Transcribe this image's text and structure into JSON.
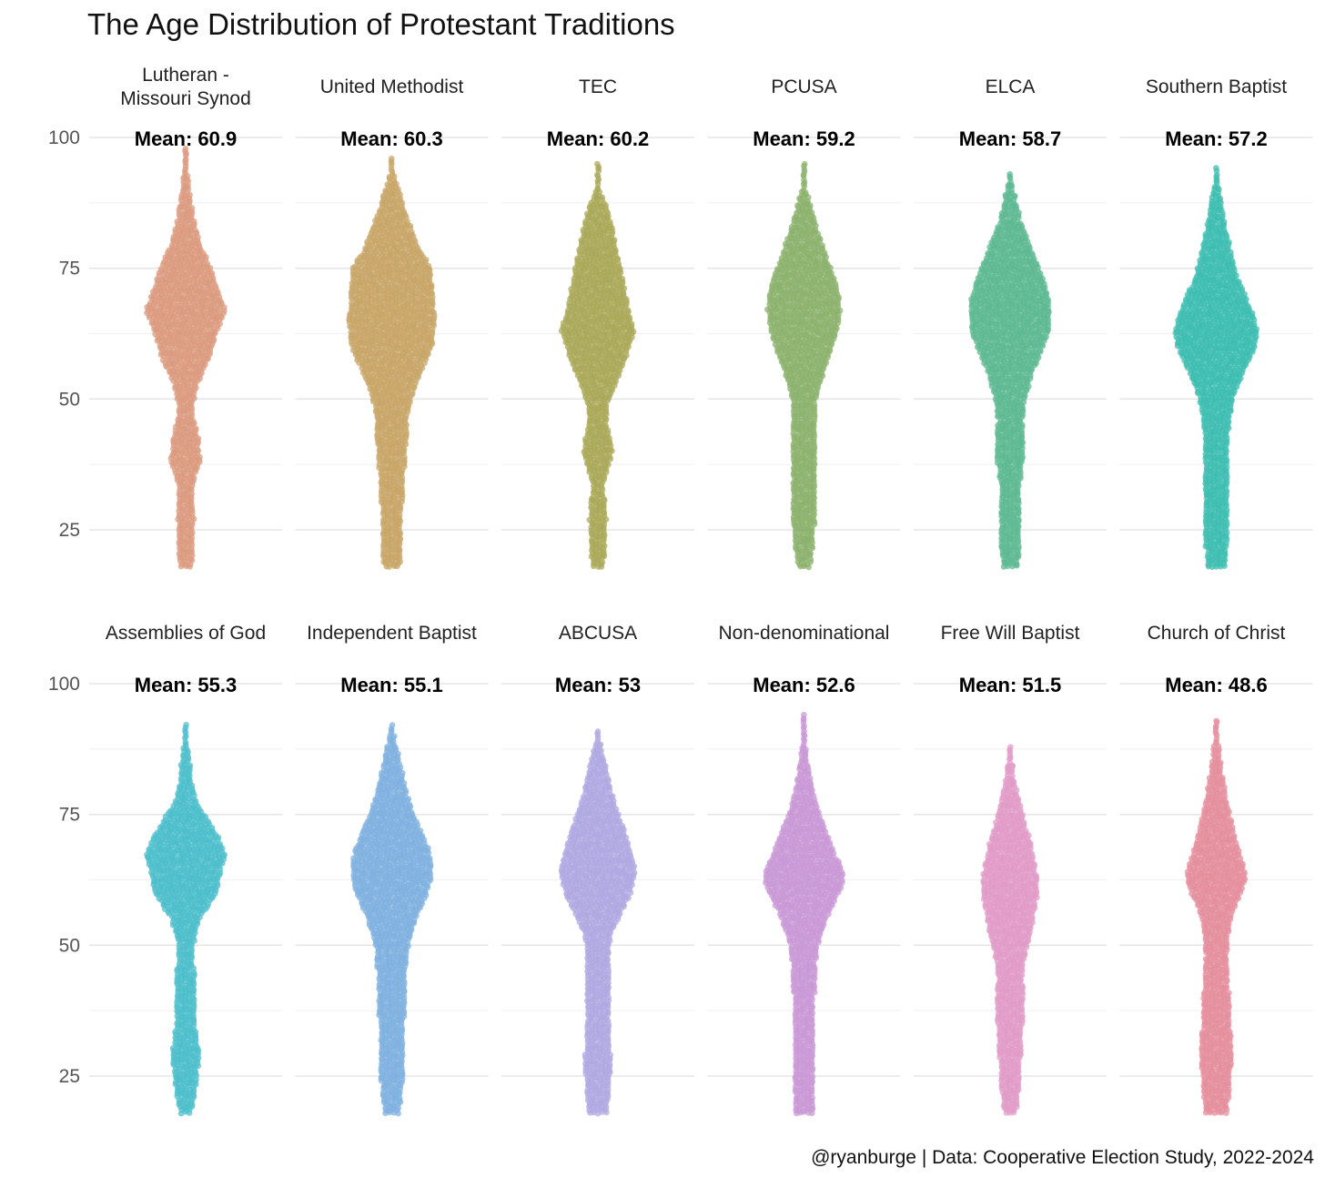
{
  "chart_data": {
    "type": "beeswarm",
    "title": "The Age Distribution of Protestant Traditions",
    "caption": "@ryanburge | Data: Cooperative Election Study, 2022-2024",
    "xlabel": "",
    "ylabel": "",
    "ylim": [
      18,
      100
    ],
    "yticks": [
      25,
      50,
      75,
      100
    ],
    "grid": true,
    "legend": "none",
    "panels": [
      {
        "name": "Lutheran -\nMissouri Synod",
        "mean_label": "Mean: 60.9",
        "mean": 60.9,
        "color": "#DB9A7E",
        "min": 18,
        "max": 98,
        "profile": [
          [
            18,
            7
          ],
          [
            20,
            9
          ],
          [
            25,
            9
          ],
          [
            27,
            10
          ],
          [
            30,
            9
          ],
          [
            33,
            8
          ],
          [
            35,
            11
          ],
          [
            38,
            17
          ],
          [
            41,
            16
          ],
          [
            45,
            12
          ],
          [
            47,
            8
          ],
          [
            50,
            10
          ],
          [
            53,
            14
          ],
          [
            57,
            25
          ],
          [
            62,
            34
          ],
          [
            67,
            44
          ],
          [
            72,
            34
          ],
          [
            76,
            26
          ],
          [
            80,
            16
          ],
          [
            85,
            9
          ],
          [
            90,
            5
          ],
          [
            93,
            3
          ],
          [
            98,
            1
          ]
        ]
      },
      {
        "name": "United Methodist",
        "mean_label": "Mean: 60.3",
        "mean": 60.3,
        "color": "#C7A566",
        "min": 18,
        "max": 96,
        "profile": [
          [
            18,
            9
          ],
          [
            20,
            11
          ],
          [
            25,
            12
          ],
          [
            30,
            12
          ],
          [
            34,
            13
          ],
          [
            38,
            15
          ],
          [
            42,
            17
          ],
          [
            46,
            17
          ],
          [
            50,
            22
          ],
          [
            55,
            32
          ],
          [
            60,
            45
          ],
          [
            65,
            48
          ],
          [
            70,
            46
          ],
          [
            75,
            44
          ],
          [
            78,
            33
          ],
          [
            82,
            24
          ],
          [
            86,
            15
          ],
          [
            89,
            10
          ],
          [
            92,
            4
          ],
          [
            96,
            1
          ]
        ]
      },
      {
        "name": "TEC",
        "mean_label": "Mean: 60.2",
        "mean": 60.2,
        "color": "#A9A757",
        "min": 18,
        "max": 95,
        "profile": [
          [
            18,
            6
          ],
          [
            20,
            8
          ],
          [
            24,
            9
          ],
          [
            27,
            10
          ],
          [
            30,
            9
          ],
          [
            33,
            6
          ],
          [
            36,
            10
          ],
          [
            40,
            17
          ],
          [
            43,
            14
          ],
          [
            46,
            10
          ],
          [
            49,
            12
          ],
          [
            53,
            20
          ],
          [
            58,
            31
          ],
          [
            63,
            41
          ],
          [
            68,
            33
          ],
          [
            73,
            28
          ],
          [
            78,
            22
          ],
          [
            83,
            16
          ],
          [
            87,
            10
          ],
          [
            90,
            3
          ],
          [
            95,
            1
          ]
        ]
      },
      {
        "name": "PCUSA",
        "mean_label": "Mean: 59.2",
        "mean": 59.2,
        "color": "#8AB26C",
        "min": 18,
        "max": 95,
        "profile": [
          [
            18,
            7
          ],
          [
            20,
            9
          ],
          [
            25,
            12
          ],
          [
            30,
            13
          ],
          [
            35,
            13
          ],
          [
            40,
            13
          ],
          [
            45,
            13
          ],
          [
            50,
            14
          ],
          [
            54,
            20
          ],
          [
            58,
            28
          ],
          [
            63,
            37
          ],
          [
            67,
            41
          ],
          [
            72,
            37
          ],
          [
            76,
            28
          ],
          [
            80,
            20
          ],
          [
            84,
            13
          ],
          [
            87,
            8
          ],
          [
            90,
            3
          ],
          [
            95,
            1
          ]
        ]
      },
      {
        "name": "ELCA",
        "mean_label": "Mean: 58.7",
        "mean": 58.7,
        "color": "#5BB890",
        "min": 18,
        "max": 93,
        "profile": [
          [
            18,
            8
          ],
          [
            20,
            10
          ],
          [
            25,
            11
          ],
          [
            29,
            11
          ],
          [
            33,
            11
          ],
          [
            36,
            13
          ],
          [
            40,
            16
          ],
          [
            43,
            15
          ],
          [
            46,
            14
          ],
          [
            50,
            17
          ],
          [
            55,
            25
          ],
          [
            60,
            37
          ],
          [
            64,
            45
          ],
          [
            68,
            45
          ],
          [
            72,
            39
          ],
          [
            76,
            30
          ],
          [
            80,
            22
          ],
          [
            84,
            12
          ],
          [
            88,
            7
          ],
          [
            93,
            1
          ]
        ]
      },
      {
        "name": "Southern Baptist",
        "mean_label": "Mean: 57.2",
        "mean": 57.2,
        "color": "#3BBDB0",
        "min": 18,
        "max": 94,
        "profile": [
          [
            18,
            11
          ],
          [
            21,
            12
          ],
          [
            26,
            13
          ],
          [
            30,
            13
          ],
          [
            35,
            13
          ],
          [
            40,
            13
          ],
          [
            44,
            14
          ],
          [
            48,
            17
          ],
          [
            52,
            23
          ],
          [
            56,
            33
          ],
          [
            60,
            44
          ],
          [
            63,
            46
          ],
          [
            66,
            42
          ],
          [
            70,
            32
          ],
          [
            74,
            23
          ],
          [
            78,
            17
          ],
          [
            82,
            12
          ],
          [
            86,
            8
          ],
          [
            90,
            4
          ],
          [
            94,
            1
          ]
        ]
      },
      {
        "name": "Assemblies of God",
        "mean_label": "Mean: 55.3",
        "mean": 55.3,
        "color": "#4BBECB",
        "min": 18,
        "max": 92,
        "profile": [
          [
            18,
            7
          ],
          [
            20,
            9
          ],
          [
            24,
            13
          ],
          [
            28,
            15
          ],
          [
            32,
            14
          ],
          [
            36,
            10
          ],
          [
            40,
            11
          ],
          [
            45,
            10
          ],
          [
            50,
            9
          ],
          [
            55,
            16
          ],
          [
            60,
            35
          ],
          [
            64,
            39
          ],
          [
            67,
            44
          ],
          [
            70,
            38
          ],
          [
            74,
            25
          ],
          [
            77,
            14
          ],
          [
            80,
            8
          ],
          [
            84,
            6
          ],
          [
            88,
            3
          ],
          [
            92,
            1
          ]
        ]
      },
      {
        "name": "Independent Baptist",
        "mean_label": "Mean: 55.1",
        "mean": 55.1,
        "color": "#7EB0DF",
        "min": 18,
        "max": 92,
        "profile": [
          [
            18,
            8
          ],
          [
            20,
            10
          ],
          [
            25,
            13
          ],
          [
            30,
            14
          ],
          [
            35,
            14
          ],
          [
            40,
            15
          ],
          [
            45,
            16
          ],
          [
            50,
            19
          ],
          [
            55,
            27
          ],
          [
            60,
            40
          ],
          [
            64,
            45
          ],
          [
            68,
            42
          ],
          [
            72,
            32
          ],
          [
            76,
            23
          ],
          [
            80,
            16
          ],
          [
            84,
            11
          ],
          [
            88,
            6
          ],
          [
            92,
            1
          ]
        ]
      },
      {
        "name": "ABCUSA",
        "mean_label": "Mean: 53",
        "mean": 53,
        "color": "#AEA8E2",
        "min": 18,
        "max": 91,
        "profile": [
          [
            18,
            11
          ],
          [
            20,
            12
          ],
          [
            24,
            14
          ],
          [
            28,
            15
          ],
          [
            32,
            13
          ],
          [
            36,
            12
          ],
          [
            40,
            14
          ],
          [
            44,
            14
          ],
          [
            48,
            13
          ],
          [
            52,
            15
          ],
          [
            56,
            26
          ],
          [
            60,
            37
          ],
          [
            64,
            42
          ],
          [
            68,
            37
          ],
          [
            72,
            30
          ],
          [
            76,
            21
          ],
          [
            80,
            15
          ],
          [
            84,
            10
          ],
          [
            88,
            4
          ],
          [
            91,
            1
          ]
        ]
      },
      {
        "name": "Non-denominational",
        "mean_label": "Mean: 52.6",
        "mean": 52.6,
        "color": "#C997D6",
        "min": 18,
        "max": 94,
        "profile": [
          [
            18,
            11
          ],
          [
            20,
            12
          ],
          [
            24,
            12
          ],
          [
            28,
            11
          ],
          [
            32,
            11
          ],
          [
            36,
            11
          ],
          [
            40,
            12
          ],
          [
            45,
            13
          ],
          [
            50,
            16
          ],
          [
            55,
            25
          ],
          [
            60,
            39
          ],
          [
            62,
            44
          ],
          [
            64,
            43
          ],
          [
            68,
            34
          ],
          [
            72,
            25
          ],
          [
            76,
            16
          ],
          [
            80,
            10
          ],
          [
            84,
            6
          ],
          [
            88,
            3
          ],
          [
            94,
            1
          ]
        ]
      },
      {
        "name": "Free Will Baptist",
        "mean_label": "Mean: 51.5",
        "mean": 51.5,
        "color": "#E09AC6",
        "min": 18,
        "max": 88,
        "profile": [
          [
            18,
            7
          ],
          [
            20,
            9
          ],
          [
            24,
            11
          ],
          [
            28,
            12
          ],
          [
            32,
            13
          ],
          [
            36,
            15
          ],
          [
            40,
            15
          ],
          [
            44,
            14
          ],
          [
            48,
            17
          ],
          [
            52,
            23
          ],
          [
            56,
            27
          ],
          [
            60,
            31
          ],
          [
            63,
            31
          ],
          [
            66,
            27
          ],
          [
            70,
            23
          ],
          [
            74,
            16
          ],
          [
            78,
            10
          ],
          [
            82,
            5
          ],
          [
            85,
            3
          ],
          [
            88,
            1
          ]
        ]
      },
      {
        "name": "Church of Christ",
        "mean_label": "Mean: 48.6",
        "mean": 48.6,
        "color": "#E48E9B",
        "min": 18,
        "max": 93,
        "profile": [
          [
            18,
            13
          ],
          [
            20,
            14
          ],
          [
            24,
            16
          ],
          [
            28,
            17
          ],
          [
            32,
            17
          ],
          [
            36,
            16
          ],
          [
            40,
            15
          ],
          [
            44,
            13
          ],
          [
            48,
            12
          ],
          [
            52,
            14
          ],
          [
            56,
            18
          ],
          [
            60,
            28
          ],
          [
            63,
            34
          ],
          [
            66,
            29
          ],
          [
            70,
            23
          ],
          [
            74,
            17
          ],
          [
            78,
            12
          ],
          [
            82,
            8
          ],
          [
            86,
            5
          ],
          [
            90,
            2
          ],
          [
            93,
            1
          ]
        ]
      }
    ]
  }
}
